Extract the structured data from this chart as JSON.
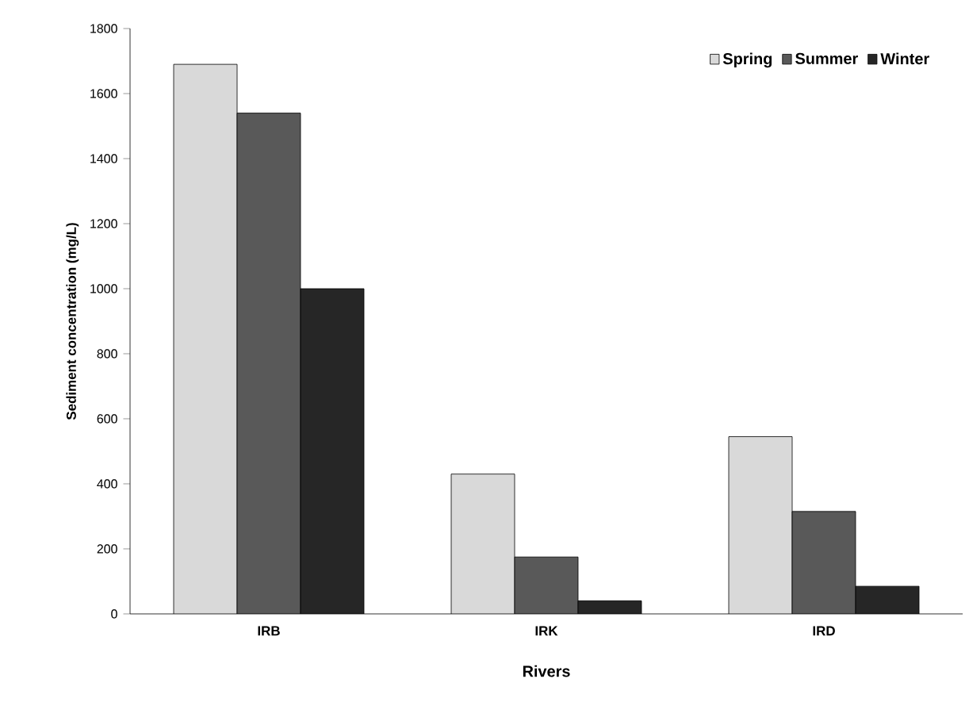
{
  "chart_data": {
    "type": "bar",
    "xlabel": "Rivers",
    "ylabel": "Sediment concentration (mg/L)",
    "categories": [
      "IRB",
      "IRK",
      "IRD"
    ],
    "series": [
      {
        "name": "Spring",
        "color": "#d9d9d9",
        "values": [
          1690,
          430,
          545
        ]
      },
      {
        "name": "Summer",
        "color": "#595959",
        "values": [
          1540,
          175,
          315
        ]
      },
      {
        "name": "Winter",
        "color": "#262626",
        "values": [
          1000,
          40,
          85
        ]
      }
    ],
    "ylim": [
      0,
      1800
    ],
    "yticks": [
      0,
      200,
      400,
      600,
      800,
      1000,
      1200,
      1400,
      1600,
      1800
    ],
    "grid": false,
    "legend": "top right"
  }
}
